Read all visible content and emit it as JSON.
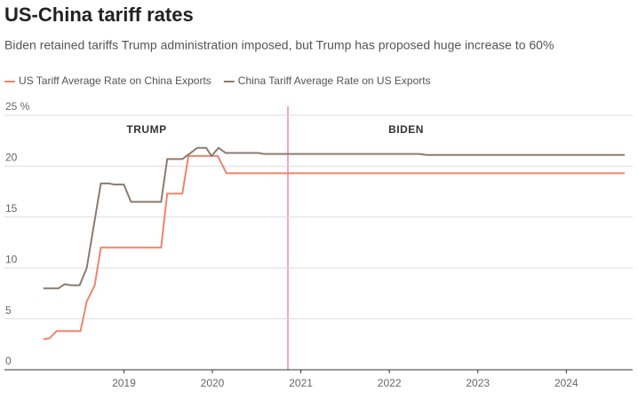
{
  "chart_data": {
    "type": "line",
    "title": "US-China tariff rates",
    "subtitle": "Biden retained tariffs Trump administration imposed, but Trump has proposed huge increase to 60%",
    "annotations": [
      "TRUMP",
      "BIDEN"
    ],
    "xlim": [
      2017.65,
      2024.75
    ],
    "xticks": [
      2019,
      2020,
      2021,
      2022,
      2023,
      2024
    ],
    "ylim": [
      0,
      25
    ],
    "yticks": [
      0,
      5,
      10,
      15,
      20,
      {
        "value": 25,
        "label": "25 %"
      }
    ],
    "grid": true,
    "legend": "top",
    "series": [
      {
        "name": "US Tariff Average Rate on China Exports",
        "color": "#f0846c",
        "x": [
          2018.09,
          2018.16,
          2018.24,
          2018.51,
          2018.58,
          2018.67,
          2018.74,
          2019.42,
          2019.49,
          2019.66,
          2019.73,
          2020.06,
          2020.16,
          2024.66
        ],
        "values": [
          3.0,
          3.1,
          3.8,
          3.8,
          6.7,
          8.3,
          12.0,
          12.0,
          17.3,
          17.3,
          21.0,
          21.0,
          19.3,
          19.3
        ]
      },
      {
        "name": "China Tariff Average Rate on US Exports",
        "color": "#8c7b70",
        "x": [
          2018.09,
          2018.26,
          2018.33,
          2018.41,
          2018.5,
          2018.58,
          2018.74,
          2018.83,
          2018.89,
          2019.0,
          2019.08,
          2019.42,
          2019.49,
          2019.66,
          2019.74,
          2019.83,
          2019.93,
          2019.99,
          2020.07,
          2020.15,
          2020.52,
          2020.58,
          2022.34,
          2022.42,
          2024.66
        ],
        "values": [
          8.0,
          8.0,
          8.4,
          8.3,
          8.3,
          10.0,
          18.3,
          18.3,
          18.2,
          18.2,
          16.5,
          16.5,
          20.7,
          20.7,
          21.2,
          21.8,
          21.8,
          21.0,
          21.8,
          21.3,
          21.3,
          21.2,
          21.2,
          21.1,
          21.1
        ]
      }
    ]
  }
}
